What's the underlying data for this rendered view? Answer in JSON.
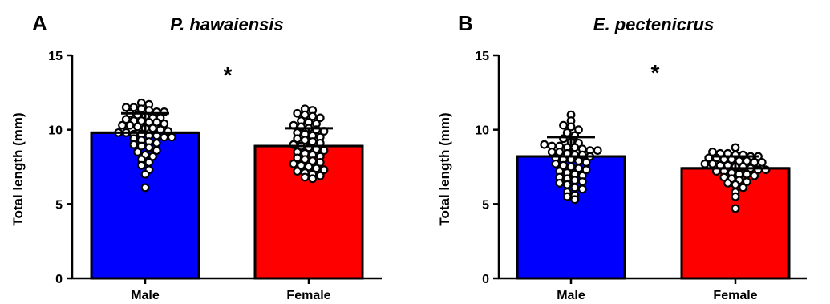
{
  "chart_data": [
    {
      "type": "bar",
      "panel_label": "A",
      "title": "P. hawaiensis",
      "ylabel": "Total length  (mm)",
      "xlabel": "",
      "ylim": [
        0,
        15
      ],
      "yticks": [
        "0",
        "5",
        "10",
        "15"
      ],
      "categories": [
        "Male",
        "Female"
      ],
      "values": [
        9.8,
        8.9
      ],
      "error_sd": [
        1.3,
        1.2
      ],
      "colors": [
        "#0000ff",
        "#ff0000"
      ],
      "significance": "*",
      "points": [
        [
          11.8,
          11.7,
          11.5,
          11.5,
          11.4,
          11.3,
          11.2,
          11.2,
          11.1,
          11.0,
          10.9,
          10.8,
          10.8,
          10.7,
          10.6,
          10.6,
          10.5,
          10.5,
          10.4,
          10.3,
          10.3,
          10.2,
          10.1,
          10.1,
          10.0,
          9.9,
          9.8,
          9.8,
          9.7,
          9.7,
          9.6,
          9.6,
          9.5,
          9.5,
          9.4,
          9.3,
          9.2,
          9.1,
          9.0,
          8.9,
          8.8,
          8.6,
          8.5,
          8.3,
          8.2,
          8.0,
          7.8,
          7.6,
          7.3,
          7.0,
          6.1
        ],
        [
          11.4,
          11.3,
          11.1,
          11.0,
          10.9,
          10.8,
          10.6,
          10.5,
          10.4,
          10.3,
          10.2,
          10.1,
          10.0,
          9.9,
          9.8,
          9.7,
          9.6,
          9.5,
          9.4,
          9.3,
          9.2,
          9.1,
          9.0,
          8.9,
          8.8,
          8.7,
          8.6,
          8.5,
          8.4,
          8.3,
          8.2,
          8.1,
          8.0,
          7.9,
          7.8,
          7.7,
          7.6,
          7.5,
          7.4,
          7.3,
          7.2,
          7.1,
          7.0,
          6.9,
          6.8,
          6.7
        ]
      ]
    },
    {
      "type": "bar",
      "panel_label": "B",
      "title": "E. pectenicrus",
      "ylabel": "Total length  (mm)",
      "xlabel": "",
      "ylim": [
        0,
        15
      ],
      "yticks": [
        "0",
        "5",
        "10",
        "15"
      ],
      "categories": [
        "Male",
        "Female"
      ],
      "values": [
        8.2,
        7.4
      ],
      "error_sd": [
        1.3,
        0.8
      ],
      "colors": [
        "#0000ff",
        "#ff0000"
      ],
      "significance": "*",
      "points": [
        [
          11.0,
          10.6,
          10.3,
          10.2,
          10.0,
          9.8,
          9.6,
          9.4,
          9.2,
          9.1,
          9.0,
          8.9,
          8.9,
          8.8,
          8.8,
          8.7,
          8.6,
          8.6,
          8.5,
          8.5,
          8.4,
          8.3,
          8.3,
          8.2,
          8.1,
          8.0,
          8.0,
          7.9,
          7.8,
          7.7,
          7.6,
          7.5,
          7.4,
          7.3,
          7.2,
          7.1,
          7.0,
          6.9,
          6.8,
          6.7,
          6.6,
          6.5,
          6.4,
          6.3,
          6.1,
          6.0,
          5.8,
          5.6,
          5.5,
          5.3
        ],
        [
          8.8,
          8.5,
          8.4,
          8.4,
          8.3,
          8.3,
          8.2,
          8.2,
          8.1,
          8.1,
          8.0,
          8.0,
          7.9,
          7.9,
          7.8,
          7.8,
          7.7,
          7.7,
          7.6,
          7.6,
          7.5,
          7.5,
          7.4,
          7.3,
          7.3,
          7.2,
          7.2,
          7.1,
          7.0,
          7.0,
          6.9,
          6.8,
          6.7,
          6.6,
          6.5,
          6.4,
          6.3,
          6.1,
          5.8,
          5.5,
          4.7
        ]
      ]
    }
  ]
}
